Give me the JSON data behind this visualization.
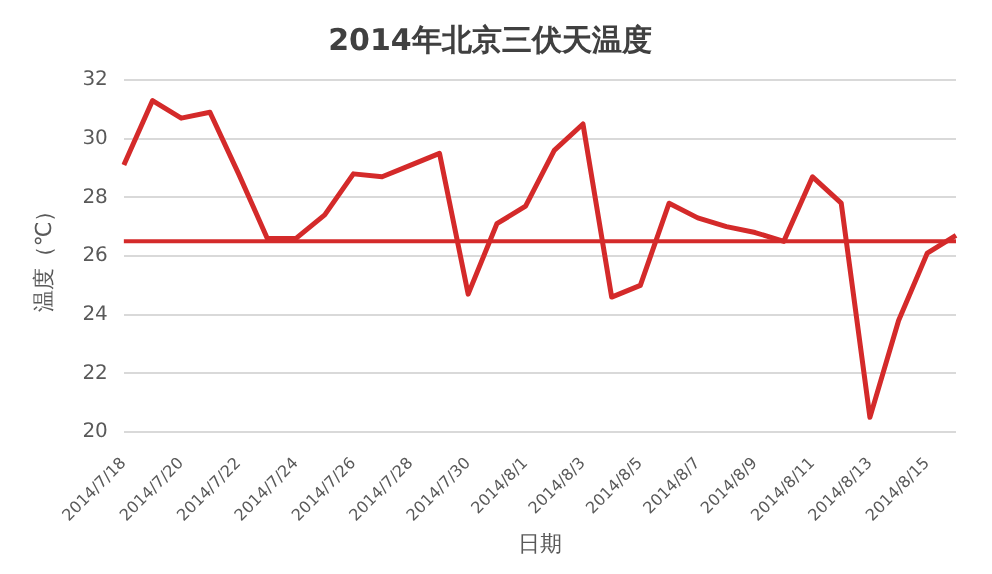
{
  "chart_data": {
    "type": "line",
    "title": "2014年北京三伏天温度",
    "xlabel": "日期",
    "ylabel": "温度（℃）",
    "categories": [
      "2014/7/18",
      null,
      "2014/7/20",
      null,
      "2014/7/22",
      null,
      "2014/7/24",
      null,
      "2014/7/26",
      null,
      "2014/7/28",
      null,
      "2014/7/30",
      null,
      "2014/8/1",
      null,
      "2014/8/3",
      null,
      "2014/8/5",
      null,
      "2014/8/7",
      null,
      "2014/8/9",
      null,
      "2014/8/11",
      null,
      "2014/8/13",
      null,
      "2014/8/15",
      null
    ],
    "series": [
      {
        "color": "#d42a2a",
        "values": [
          29.1,
          31.3,
          30.7,
          30.9,
          28.8,
          26.6,
          26.6,
          27.4,
          28.8,
          28.7,
          29.1,
          29.5,
          24.7,
          27.1,
          27.7,
          29.6,
          30.5,
          24.6,
          25.0,
          27.8,
          27.3,
          27.0,
          26.8,
          26.5,
          28.7,
          27.8,
          20.5,
          23.8,
          26.1,
          26.7
        ]
      }
    ],
    "ylim": [
      20,
      32
    ],
    "yticks": [
      20,
      22,
      24,
      26,
      28,
      30,
      32
    ],
    "grid": "y",
    "legend": false,
    "marker": "none",
    "line_style": "solid",
    "ref_lines": [
      {
        "axis": "y",
        "value": 26.5,
        "color": "#d42a2a"
      }
    ]
  }
}
